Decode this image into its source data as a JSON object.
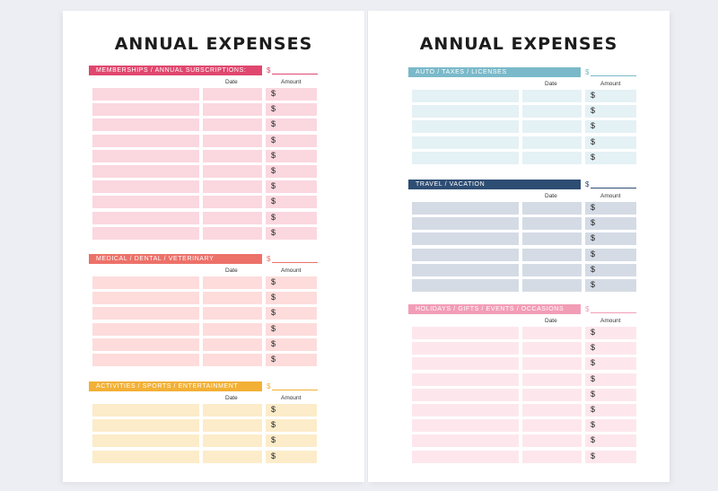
{
  "left_page": {
    "title": "ANNUAL EXPENSES",
    "sections": [
      {
        "label": "MEMBERSHIPS / ANNUAL SUBSCRIPTIONS:",
        "color": "#e0476e",
        "fill": "#fbd7df",
        "rows": 10
      },
      {
        "label": "MEDICAL / DENTAL / VETERINARY",
        "color": "#ec7169",
        "fill": "#fddcdb",
        "rows": 6
      },
      {
        "label": "ACTIVITIES / SPORTS / ENTERTAINMENT",
        "color": "#f2b035",
        "fill": "#fcecc9",
        "rows": 4
      }
    ]
  },
  "right_page": {
    "title": "ANNUAL EXPENSES",
    "sections": [
      {
        "label": "AUTO / TAXES / LICENSES",
        "color": "#7ab9c9",
        "fill": "#e4f1f5",
        "rows": 5
      },
      {
        "label": "TRAVEL / VACATION",
        "color": "#2e4d73",
        "fill": "#d4dbe5",
        "rows": 6
      },
      {
        "label": "HOLIDAYS / GIFTS / EVENTS / OCCASIONS",
        "color": "#f29db6",
        "fill": "#fde7ed",
        "rows": 9
      }
    ]
  },
  "labels": {
    "date": "Date",
    "amount": "Amount",
    "currency": "$"
  }
}
